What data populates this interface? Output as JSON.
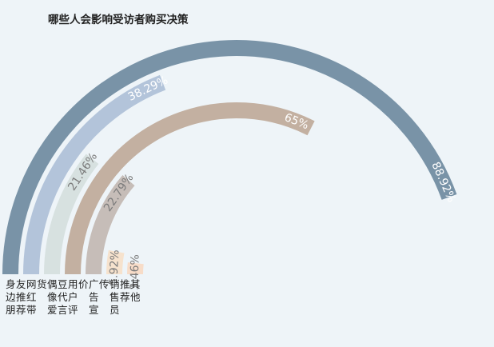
{
  "chart_data": {
    "type": "radial-bar",
    "title": "哪些人会影响受访者购买决策",
    "unit": "%",
    "max_value": 100,
    "categories": [
      "身边朋友推荐",
      "网红带货",
      "偶像爱豆代言",
      "用户评价",
      "广告宣传",
      "销售员推荐",
      "其他"
    ],
    "values": [
      88.92,
      38.29,
      21.46,
      65,
      22.79,
      5.92,
      3.46
    ],
    "value_labels": [
      "88.92%",
      "38.29%",
      "21.46%",
      "65%",
      "22.79%",
      "5.92%",
      "3.46%"
    ],
    "colors": [
      "#7993a7",
      "#b3c4da",
      "#d7e1e0",
      "#c3b0a1",
      "#c6bdb8",
      "#f6e2cd",
      "#f7dcc8"
    ],
    "label_text_colors": [
      "#ffffff",
      "#ffffff",
      "#7c7c7c",
      "#ffffff",
      "#7c7c7c",
      "#7c7c7c",
      "#7c7c7c"
    ]
  }
}
